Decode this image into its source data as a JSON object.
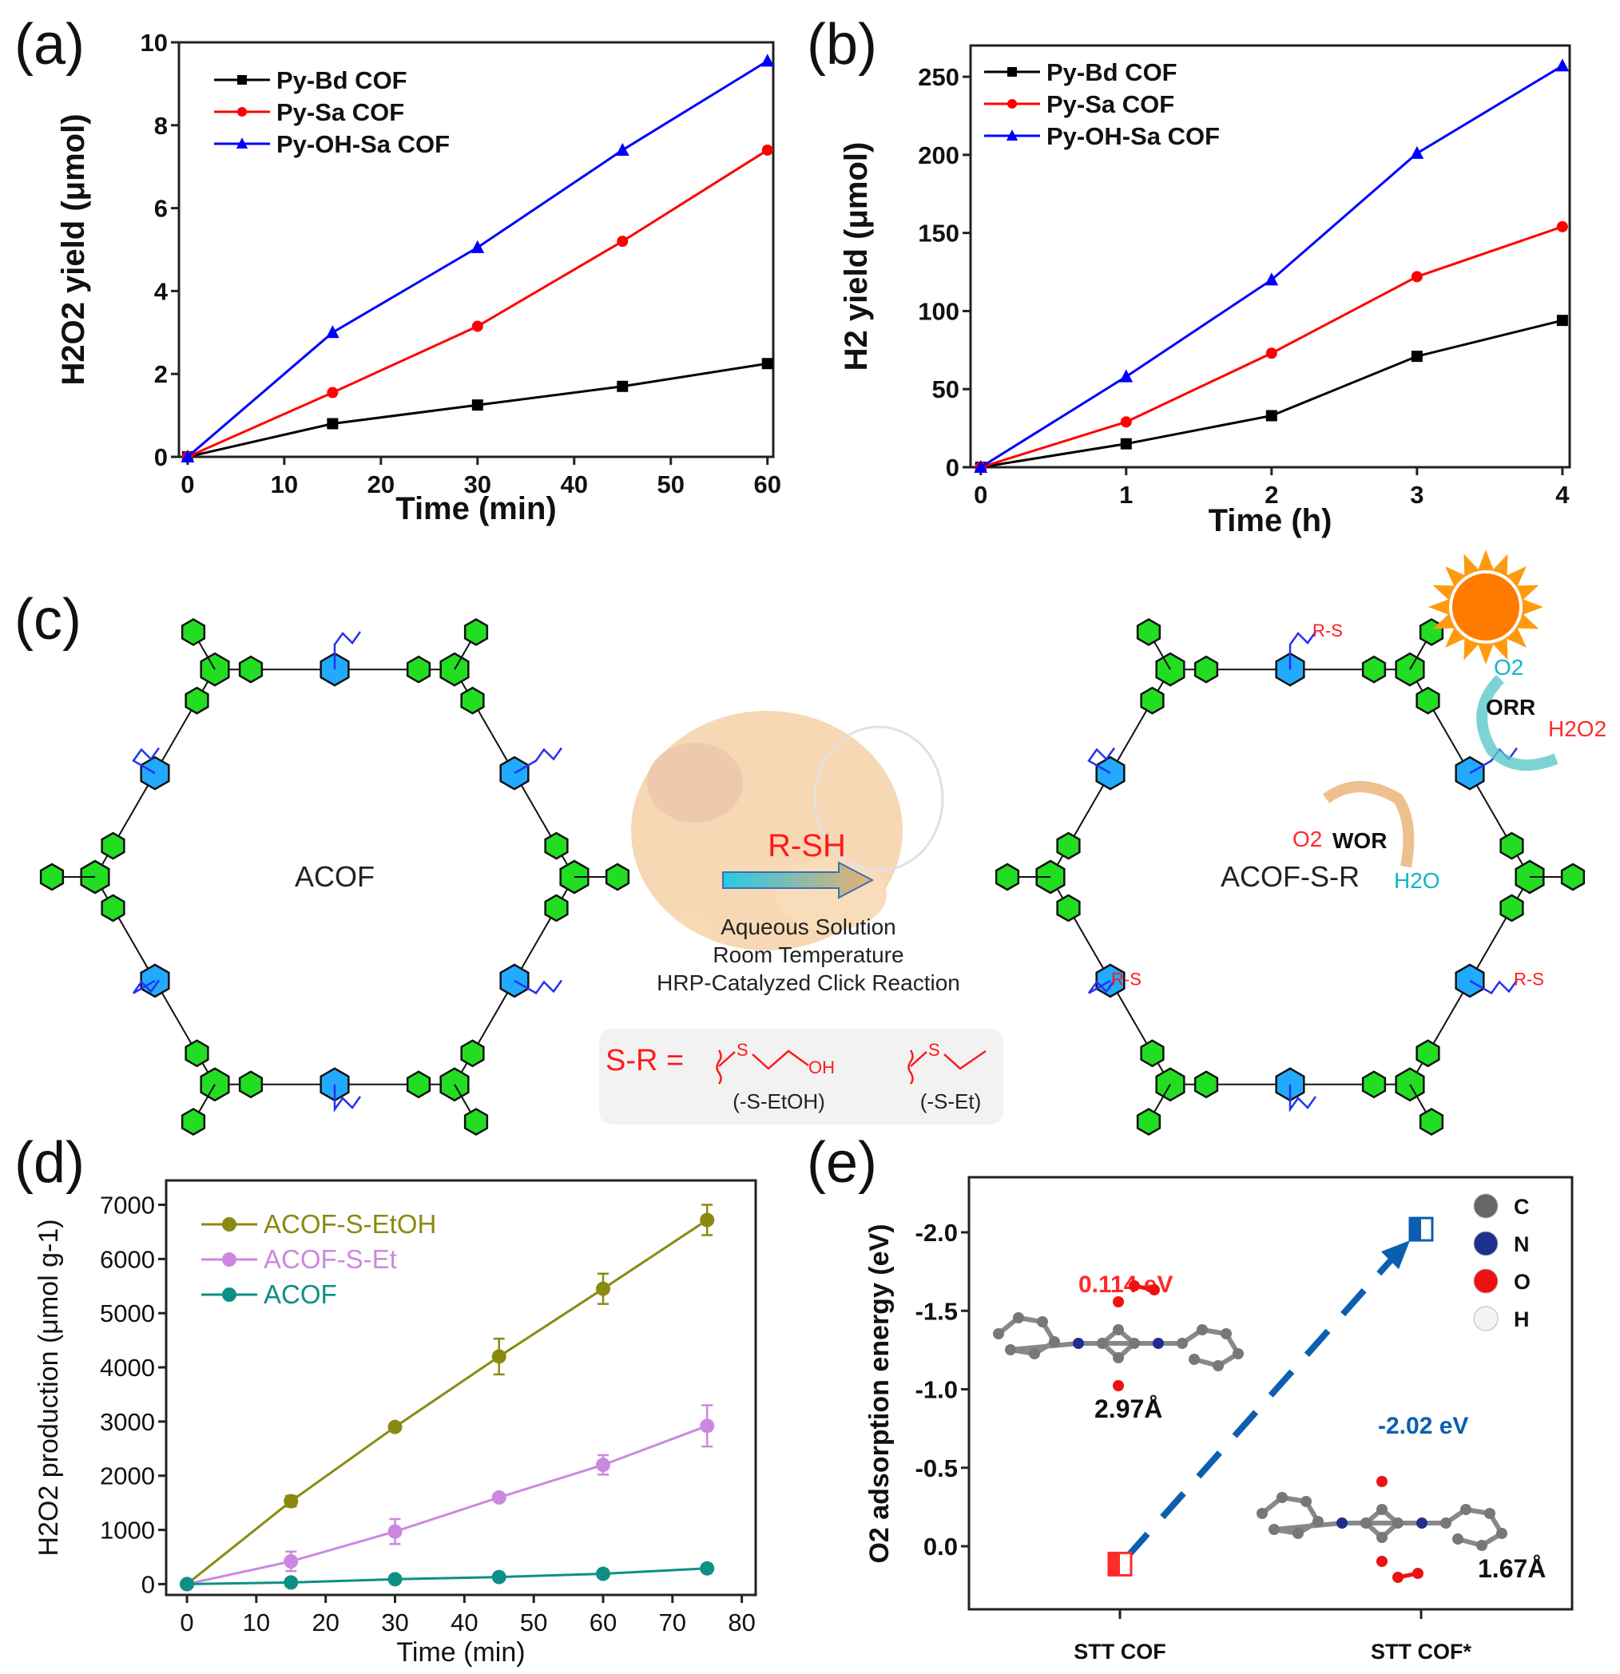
{
  "panels": {
    "a": "(a)",
    "b": "(b)",
    "c": "(c)",
    "d": "(d)",
    "e": "(e)"
  },
  "chart_data": [
    {
      "id": "a",
      "type": "line",
      "xlabel": "Time (min)",
      "ylabel": "H2O2 yield (μmol)",
      "xlim": [
        0,
        60
      ],
      "ylim": [
        0,
        10
      ],
      "xticks": [
        0,
        10,
        20,
        30,
        40,
        50,
        60
      ],
      "yticks": [
        0,
        2,
        4,
        6,
        8,
        10
      ],
      "legend": "top-left",
      "x": [
        0,
        15,
        30,
        45,
        60
      ],
      "series": [
        {
          "name": "Py-Bd COF",
          "color": "#000000",
          "marker": "square",
          "values": [
            0,
            0.8,
            1.25,
            1.7,
            2.25
          ]
        },
        {
          "name": "Py-Sa COF",
          "color": "#ff0000",
          "marker": "circle",
          "values": [
            0,
            1.55,
            3.15,
            5.2,
            7.4
          ]
        },
        {
          "name": "Py-OH-Sa COF",
          "color": "#0000ff",
          "marker": "triangle",
          "values": [
            0,
            3.0,
            5.05,
            7.4,
            9.55
          ]
        }
      ]
    },
    {
      "id": "b",
      "type": "line",
      "xlabel": "Time (h)",
      "ylabel": "H2 yield (μmol)",
      "xlim": [
        0,
        4
      ],
      "ylim": [
        0,
        270
      ],
      "xticks": [
        0,
        1,
        2,
        3,
        4
      ],
      "yticks": [
        0,
        50,
        100,
        150,
        200,
        250
      ],
      "legend": "top-left",
      "x": [
        0,
        1,
        2,
        3,
        4
      ],
      "series": [
        {
          "name": "Py-Bd COF",
          "color": "#000000",
          "marker": "square",
          "values": [
            0,
            15,
            33,
            71,
            94
          ]
        },
        {
          "name": "Py-Sa COF",
          "color": "#ff0000",
          "marker": "circle",
          "values": [
            0,
            29,
            73,
            122,
            154
          ]
        },
        {
          "name": "Py-OH-Sa COF",
          "color": "#0000ff",
          "marker": "triangle",
          "values": [
            0,
            58,
            120,
            201,
            257
          ]
        }
      ]
    },
    {
      "id": "d",
      "type": "line",
      "xlabel": "Time (min)",
      "ylabel": "H2O2 production (μmol g-1)",
      "xlim": [
        -3,
        82
      ],
      "ylim": [
        -200,
        7450
      ],
      "xticks": [
        0,
        10,
        20,
        30,
        40,
        50,
        60,
        70,
        80
      ],
      "yticks": [
        0,
        1000,
        2000,
        3000,
        4000,
        5000,
        6000,
        7000
      ],
      "legend": "top-left",
      "x": [
        0,
        15,
        30,
        45,
        60,
        75
      ],
      "series": [
        {
          "name": "ACOF-S-EtOH",
          "color": "#8a8a10",
          "marker": "circle",
          "values": [
            0,
            1530,
            2900,
            4200,
            5450,
            6720
          ],
          "errors": [
            0,
            100,
            50,
            330,
            280,
            280
          ]
        },
        {
          "name": "ACOF-S-Et",
          "color": "#cc88e0",
          "marker": "circle",
          "values": [
            0,
            420,
            970,
            1600,
            2200,
            2920
          ],
          "errors": [
            0,
            180,
            230,
            60,
            180,
            380
          ]
        },
        {
          "name": "ACOF",
          "color": "#0e8f86",
          "marker": "circle",
          "values": [
            0,
            30,
            90,
            130,
            190,
            290
          ],
          "errors": [
            0,
            0,
            0,
            0,
            0,
            0
          ]
        }
      ]
    },
    {
      "id": "e",
      "type": "scatter",
      "xlabel": "",
      "ylabel": "O2 adsorption energy (eV)",
      "ylim": [
        0.3,
        -2.3
      ],
      "y_inverted": true,
      "yticks": [
        0.0,
        -0.5,
        -1.0,
        -1.5,
        -2.0
      ],
      "ytick_labels": [
        "0.0",
        "-0.5",
        "-1.0",
        "-1.5",
        "-2.0"
      ],
      "categories": [
        "STT COF",
        "STT COF*"
      ],
      "values": [
        0.114,
        -2.02
      ],
      "colors": [
        "#ff2a2a",
        "#0a5fb0"
      ],
      "annotations": {
        "e1": "0.114 eV",
        "e2": "-2.02 eV",
        "d1": "2.97Å",
        "d2": "1.67Å"
      },
      "legend": [
        {
          "label": "C",
          "color": "#666666"
        },
        {
          "label": "N",
          "color": "#1f2f8f"
        },
        {
          "label": "O",
          "color": "#ee1111"
        },
        {
          "label": "H",
          "color": "#f4f4f4"
        }
      ]
    }
  ],
  "scheme": {
    "left_label": "ACOF",
    "right_label": "ACOF-S-R",
    "reagent": "R-SH",
    "conditions": [
      "Aqueous Solution",
      "Room Temperature",
      "HRP-Catalyzed Click Reaction"
    ],
    "sr_prefix": "S-R =",
    "sr_option1": "(-S-EtOH)",
    "sr_option2": "(-S-Et)",
    "s_atom": "S",
    "oh": "OH",
    "n_atom": "N",
    "o_atom": "O",
    "rs_label": "R-S",
    "r_label": "R",
    "o2": "O2",
    "orr": "ORR",
    "h2o2": "H2O2",
    "wor": "WOR",
    "o2b": "O2",
    "h2o": "H2O"
  }
}
